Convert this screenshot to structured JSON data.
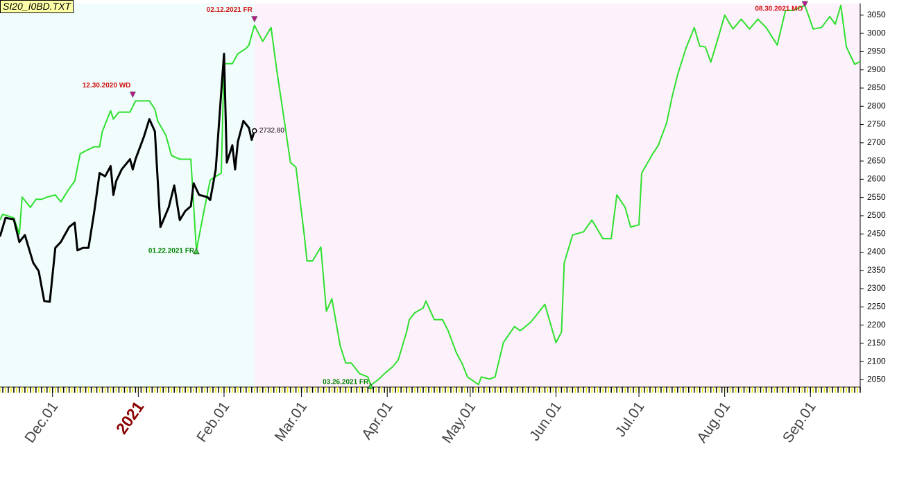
{
  "chart_data": {
    "type": "line",
    "title": "SI20_I0BD.TXT",
    "xlim": [
      -19,
      292
    ],
    "ylim": [
      2030,
      3082
    ],
    "xticks": [
      {
        "value": 0,
        "label": "Dec.01"
      },
      {
        "value": 31,
        "label": "2021"
      },
      {
        "value": 62,
        "label": "Feb.01"
      },
      {
        "value": 90,
        "label": "Mar.01"
      },
      {
        "value": 121,
        "label": "Apr.01"
      },
      {
        "value": 151,
        "label": "May.01"
      },
      {
        "value": 182,
        "label": "Jun.01"
      },
      {
        "value": 212,
        "label": "Jul.01"
      },
      {
        "value": 243,
        "label": "Aug.01"
      },
      {
        "value": 274,
        "label": "Sep.01"
      }
    ],
    "yticks": [
      2050,
      2100,
      2150,
      2200,
      2250,
      2300,
      2350,
      2400,
      2450,
      2500,
      2550,
      2600,
      2650,
      2700,
      2750,
      2800,
      2850,
      2900,
      2950,
      3000,
      3050
    ],
    "series": [
      {
        "color": "#2ee02e",
        "width": 2,
        "x": [
          -19,
          -18,
          -14,
          -12,
          -11,
          -8,
          -6,
          -4,
          -2,
          1,
          3,
          6,
          8,
          10,
          12,
          15,
          17,
          18,
          21,
          22,
          24,
          28,
          30,
          35,
          37,
          38,
          41,
          43,
          46,
          50,
          52,
          55,
          57,
          61,
          62,
          65,
          67,
          70,
          71,
          73,
          76,
          79,
          81,
          84,
          86,
          88,
          91,
          92,
          94,
          97,
          99,
          101,
          104,
          106,
          108,
          111,
          114,
          115,
          118,
          120,
          123,
          125,
          128,
          129,
          131,
          134,
          135,
          138,
          141,
          143,
          146,
          148,
          150,
          154,
          155,
          158,
          160,
          163,
          167,
          169,
          170,
          173,
          175,
          178,
          182,
          184,
          185,
          188,
          192,
          195,
          199,
          202,
          204,
          207,
          209,
          212,
          213,
          217,
          219,
          222,
          224,
          226,
          229,
          232,
          234,
          236,
          238,
          241,
          243,
          246,
          249,
          252,
          255,
          258,
          262,
          265,
          268,
          272,
          275,
          278,
          281,
          283,
          285,
          287,
          290,
          292
        ],
        "values": [
          2488,
          2504,
          2494,
          2450,
          2551,
          2523,
          2545,
          2545,
          2551,
          2557,
          2538,
          2574,
          2595,
          2670,
          2678,
          2689,
          2689,
          2731,
          2788,
          2765,
          2784,
          2784,
          2815,
          2815,
          2792,
          2760,
          2720,
          2665,
          2655,
          2655,
          2405,
          2523,
          2598,
          2617,
          2917,
          2917,
          2944,
          2959,
          2968,
          3022,
          2978,
          3016,
          2902,
          2750,
          2646,
          2633,
          2447,
          2376,
          2376,
          2414,
          2238,
          2272,
          2143,
          2096,
          2096,
          2067,
          2058,
          2035,
          2052,
          2067,
          2086,
          2105,
          2181,
          2215,
          2234,
          2247,
          2266,
          2215,
          2215,
          2185,
          2124,
          2096,
          2058,
          2037,
          2058,
          2052,
          2058,
          2152,
          2196,
          2185,
          2190,
          2209,
          2228,
          2257,
          2152,
          2181,
          2371,
          2447,
          2456,
          2488,
          2437,
          2437,
          2557,
          2523,
          2469,
          2475,
          2617,
          2670,
          2693,
          2754,
          2826,
          2887,
          2959,
          3016,
          2965,
          2963,
          2921,
          2997,
          3050,
          3012,
          3039,
          3012,
          3039,
          3016,
          2968,
          3063,
          3063,
          3077,
          3012,
          3016,
          3046,
          3025,
          3077,
          2963,
          2915,
          2923
        ]
      },
      {
        "color": "#000000",
        "width": 3,
        "x": [
          -19,
          -17,
          -14,
          -12,
          -10,
          -7,
          -5,
          -3,
          -1,
          1,
          3,
          6,
          8,
          9,
          11,
          13,
          15,
          17,
          19,
          21,
          22,
          23,
          25,
          28,
          29,
          30,
          33,
          35,
          37,
          39,
          42,
          44,
          46,
          48,
          50,
          51,
          53,
          56,
          57,
          59,
          61,
          62,
          63,
          65,
          66,
          67,
          69,
          71,
          72,
          73
        ],
        "values": [
          2443,
          2494,
          2490,
          2428,
          2447,
          2371,
          2348,
          2266,
          2264,
          2412,
          2428,
          2469,
          2481,
          2405,
          2412,
          2412,
          2507,
          2617,
          2608,
          2636,
          2557,
          2595,
          2627,
          2655,
          2627,
          2655,
          2716,
          2765,
          2731,
          2469,
          2523,
          2583,
          2488,
          2513,
          2526,
          2589,
          2557,
          2551,
          2543,
          2627,
          2841,
          2944,
          2646,
          2693,
          2627,
          2703,
          2760,
          2741,
          2708,
          2732.8
        ],
        "value_labels": [
          null,
          null,
          null,
          null,
          null,
          null,
          null,
          null,
          null,
          null,
          null,
          null,
          null,
          null,
          null,
          null,
          null,
          null,
          null,
          null,
          null,
          null,
          null,
          null,
          null,
          null,
          null,
          null,
          null,
          null,
          null,
          null,
          null,
          null,
          null,
          null,
          null,
          null,
          null,
          null,
          null,
          null,
          null,
          null,
          null,
          null,
          null,
          null,
          null,
          "2732.80"
        ]
      }
    ],
    "annotations": [
      {
        "text": "12.30.2020 WD",
        "x": 29,
        "value": 2815,
        "kind": "top",
        "color": "#d01010"
      },
      {
        "text": "02.12.2021 FR",
        "x": 73,
        "value": 3022,
        "kind": "top",
        "color": "#d01010"
      },
      {
        "text": "01.22.2021 FR",
        "x": 52,
        "value": 2405,
        "kind": "bottom",
        "color": "#008000"
      },
      {
        "text": "03.26.2021 FR",
        "x": 115,
        "value": 2035,
        "kind": "bottom",
        "color": "#008000"
      },
      {
        "text": "08.30.2021 MO",
        "x": 272,
        "value": 3077,
        "kind": "top",
        "color": "#d01010"
      }
    ]
  }
}
